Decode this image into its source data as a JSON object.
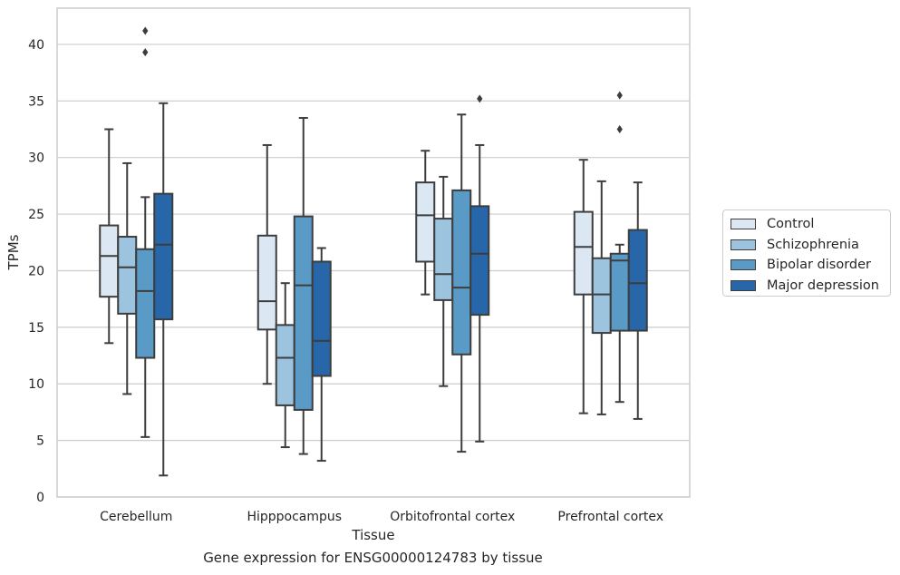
{
  "chart_data": {
    "type": "box",
    "title": "Gene expression for ENSG00000124783 by tissue",
    "xlabel": "Tissue",
    "ylabel": "TPMs",
    "ylim": [
      0,
      43.2
    ],
    "yticks": [
      0,
      5,
      10,
      15,
      20,
      25,
      30,
      35,
      40
    ],
    "grid": true,
    "legend_position": "right",
    "categories": [
      "Cerebellum",
      "Hipppocampus",
      "Orbitofrontal cortex",
      "Prefrontal cortex"
    ],
    "series": [
      {
        "name": "Control",
        "color": "#dbe8f4",
        "boxes": [
          {
            "whislo": 13.6,
            "q1": 17.7,
            "med": 21.3,
            "q3": 24.0,
            "whishi": 32.5,
            "fliers": []
          },
          {
            "whislo": 10.0,
            "q1": 14.8,
            "med": 17.3,
            "q3": 23.1,
            "whishi": 31.1,
            "fliers": []
          },
          {
            "whislo": 17.9,
            "q1": 20.8,
            "med": 24.9,
            "q3": 27.8,
            "whishi": 30.6,
            "fliers": []
          },
          {
            "whislo": 7.4,
            "q1": 17.9,
            "med": 22.1,
            "q3": 25.2,
            "whishi": 29.8,
            "fliers": []
          }
        ]
      },
      {
        "name": "Schizophrenia",
        "color": "#9cc4df",
        "boxes": [
          {
            "whislo": 9.1,
            "q1": 16.2,
            "med": 20.3,
            "q3": 23.0,
            "whishi": 29.5,
            "fliers": []
          },
          {
            "whislo": 4.4,
            "q1": 8.1,
            "med": 12.3,
            "q3": 15.2,
            "whishi": 18.9,
            "fliers": []
          },
          {
            "whislo": 9.8,
            "q1": 17.4,
            "med": 19.7,
            "q3": 24.6,
            "whishi": 28.3,
            "fliers": []
          },
          {
            "whislo": 7.3,
            "q1": 14.5,
            "med": 17.9,
            "q3": 21.1,
            "whishi": 27.9,
            "fliers": []
          }
        ]
      },
      {
        "name": "Bipolar disorder",
        "color": "#5a9ac6",
        "boxes": [
          {
            "whislo": 5.3,
            "q1": 12.3,
            "med": 18.2,
            "q3": 21.9,
            "whishi": 26.5,
            "fliers": [
              41.2,
              39.3
            ]
          },
          {
            "whislo": 3.8,
            "q1": 7.7,
            "med": 18.7,
            "q3": 24.8,
            "whishi": 33.5,
            "fliers": []
          },
          {
            "whislo": 4.0,
            "q1": 12.6,
            "med": 18.5,
            "q3": 27.1,
            "whishi": 33.8,
            "fliers": []
          },
          {
            "whislo": 8.4,
            "q1": 14.7,
            "med": 20.9,
            "q3": 21.5,
            "whishi": 22.3,
            "fliers": [
              35.5,
              32.5
            ]
          }
        ]
      },
      {
        "name": "Major depression",
        "color": "#2766a8",
        "boxes": [
          {
            "whislo": 1.9,
            "q1": 15.7,
            "med": 22.3,
            "q3": 26.8,
            "whishi": 34.8,
            "fliers": []
          },
          {
            "whislo": 3.2,
            "q1": 10.7,
            "med": 13.8,
            "q3": 20.8,
            "whishi": 22.0,
            "fliers": []
          },
          {
            "whislo": 4.9,
            "q1": 16.1,
            "med": 21.5,
            "q3": 25.7,
            "whishi": 31.1,
            "fliers": [
              35.2
            ]
          },
          {
            "whislo": 6.9,
            "q1": 14.7,
            "med": 18.9,
            "q3": 23.6,
            "whishi": 27.8,
            "fliers": []
          }
        ]
      }
    ]
  }
}
